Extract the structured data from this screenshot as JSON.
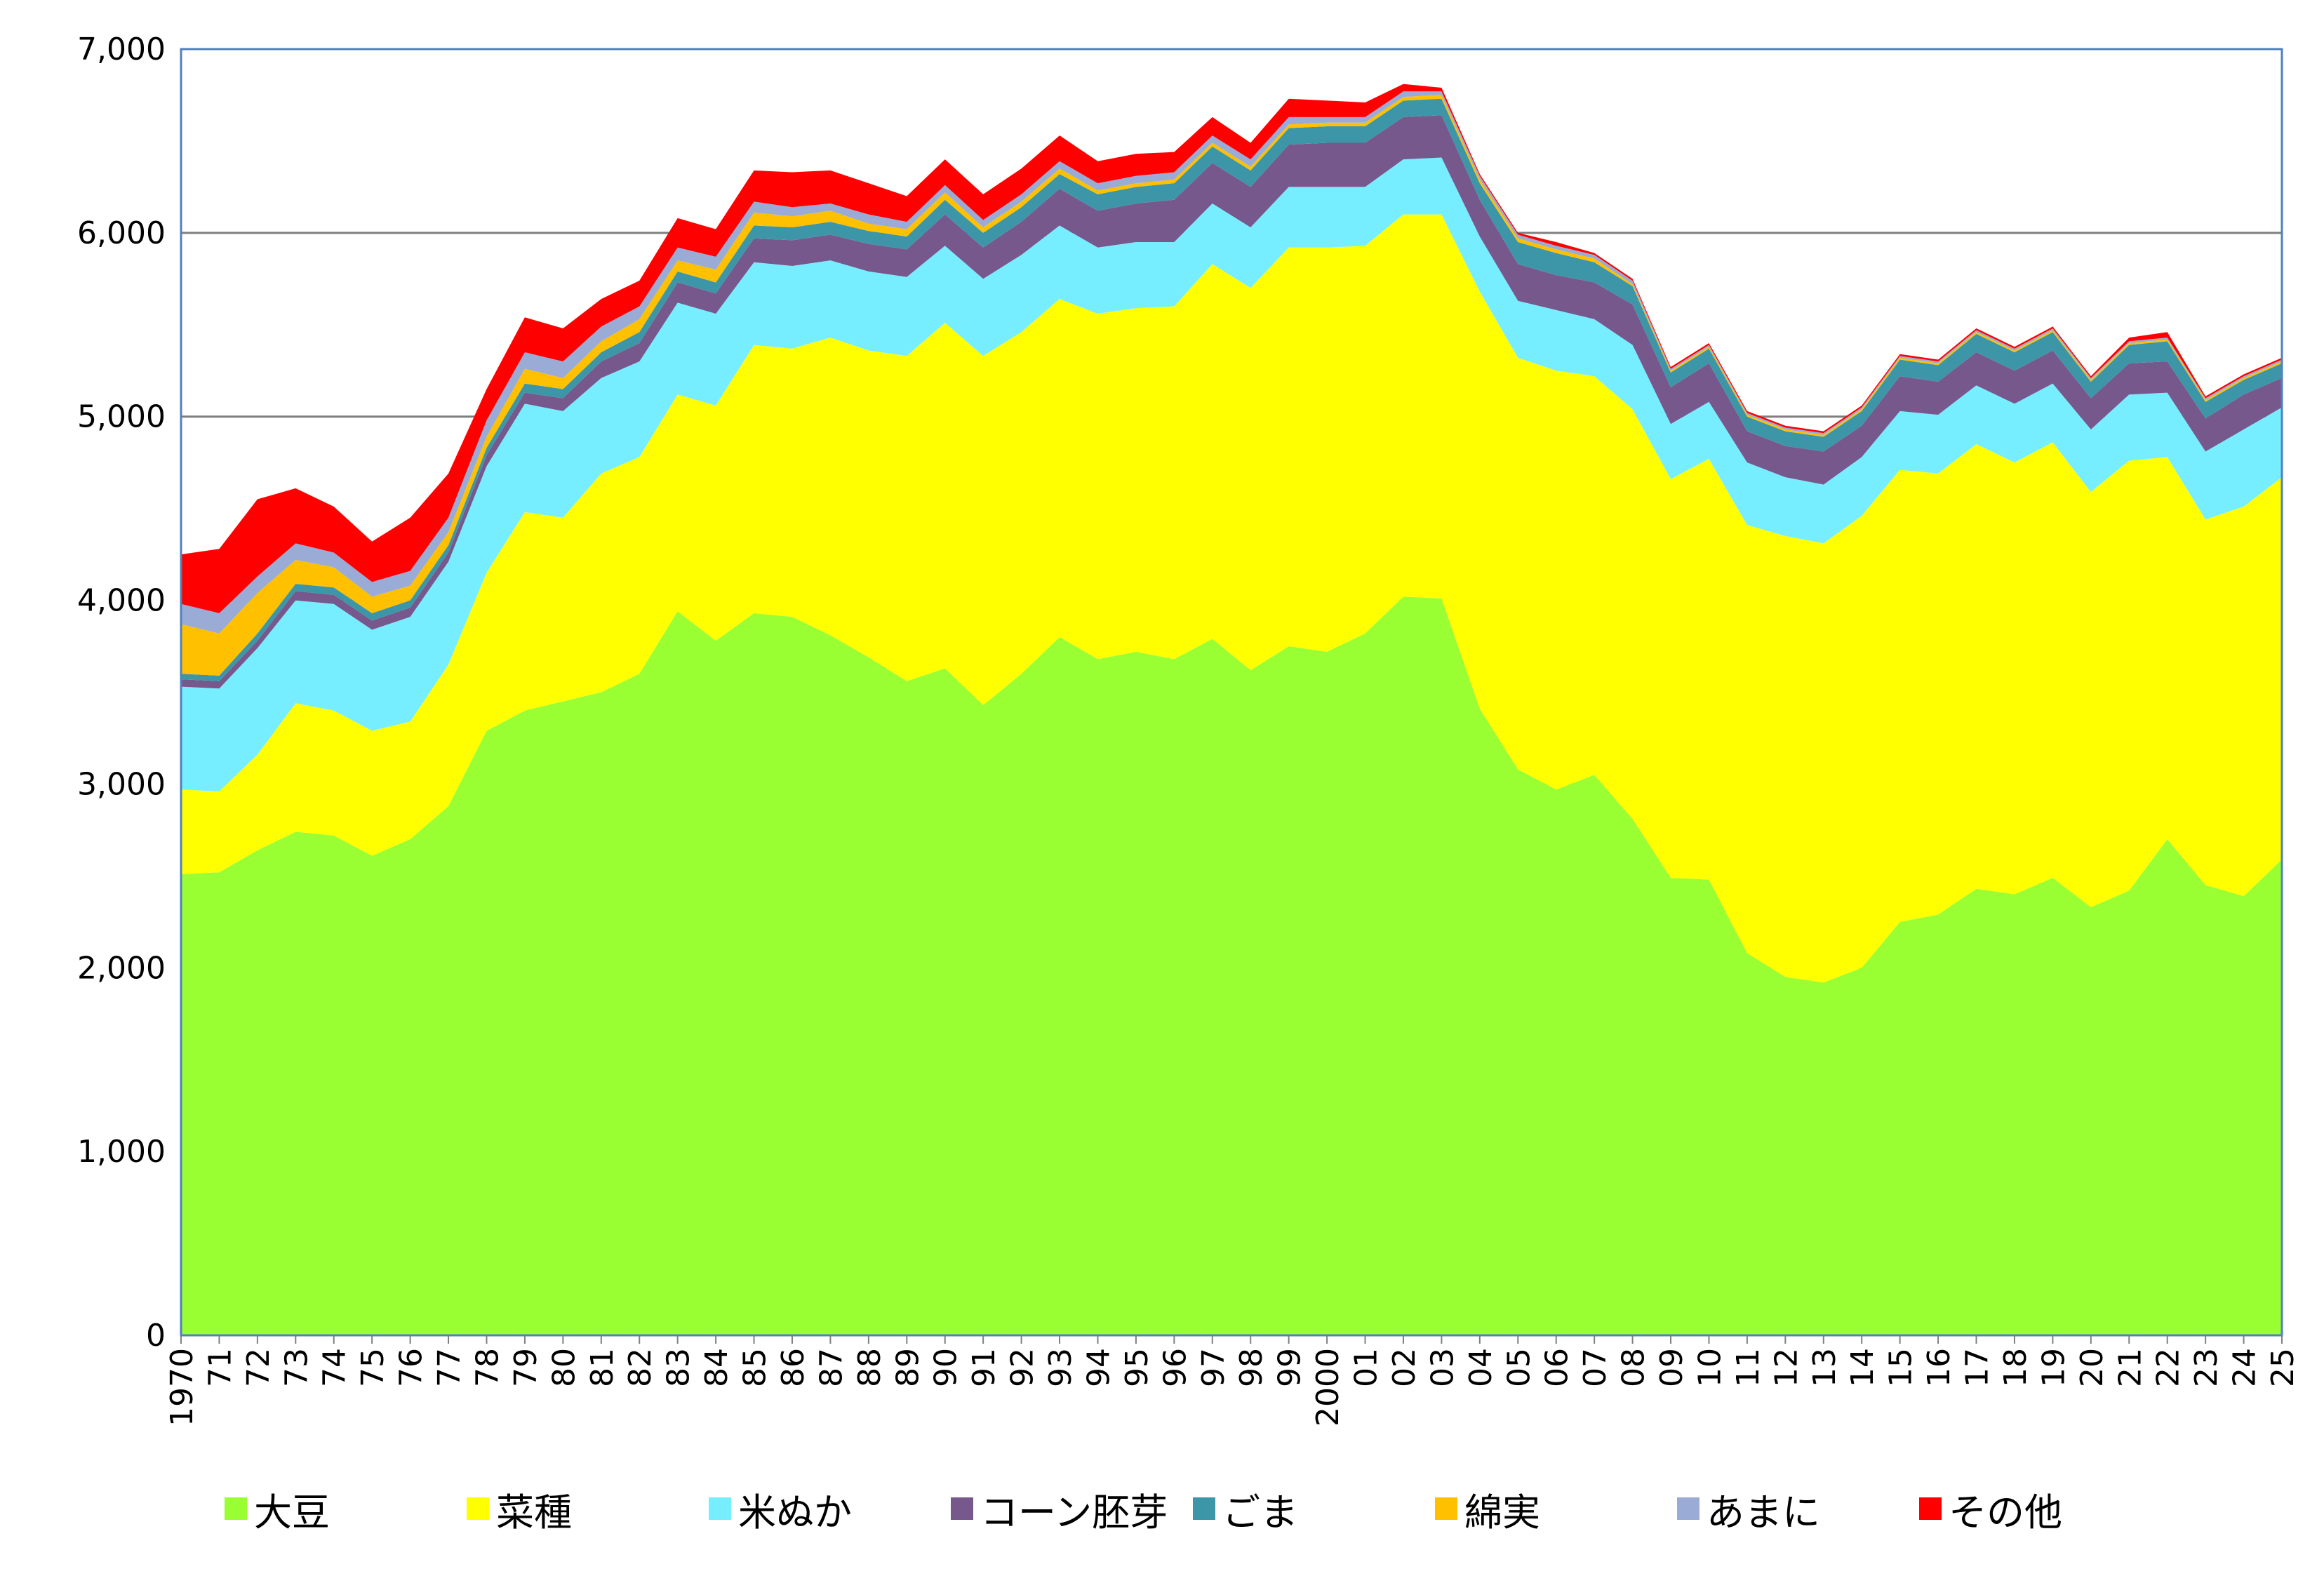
{
  "chart_data": {
    "type": "area",
    "stacked": true,
    "title": "",
    "xlabel": "",
    "ylabel": "",
    "ylim": [
      0,
      7000
    ],
    "yticks": [
      "0",
      "1,000",
      "2,000",
      "3,000",
      "4,000",
      "5,000",
      "6,000",
      "7,000"
    ],
    "grid": true,
    "legend_position": "bottom",
    "categories": [
      "1970",
      "71",
      "72",
      "73",
      "74",
      "75",
      "76",
      "77",
      "78",
      "79",
      "80",
      "81",
      "82",
      "83",
      "84",
      "85",
      "86",
      "87",
      "88",
      "89",
      "90",
      "91",
      "92",
      "93",
      "94",
      "95",
      "96",
      "97",
      "98",
      "99",
      "2000",
      "01",
      "02",
      "03",
      "04",
      "05",
      "06",
      "07",
      "08",
      "09",
      "10",
      "11",
      "12",
      "13",
      "14",
      "15",
      "16",
      "17",
      "18",
      "19",
      "20",
      "21",
      "22",
      "23",
      "24",
      "25"
    ],
    "series": [
      {
        "name": "大豆",
        "color": "#99ff33",
        "values": [
          2510,
          2520,
          2640,
          2740,
          2720,
          2610,
          2700,
          2880,
          3290,
          3400,
          3450,
          3500,
          3600,
          3940,
          3780,
          3930,
          3910,
          3810,
          3690,
          3560,
          3630,
          3430,
          3600,
          3800,
          3680,
          3720,
          3680,
          3790,
          3620,
          3750,
          3720,
          3820,
          4020,
          4010,
          3410,
          3080,
          2970,
          3050,
          2810,
          2490,
          2480,
          2080,
          1950,
          1920,
          2000,
          2250,
          2290,
          2430,
          2400,
          2490,
          2330,
          2420,
          2700,
          2450,
          2390,
          2590
        ]
      },
      {
        "name": "菜種",
        "color": "#ffff00",
        "values": [
          460,
          440,
          520,
          700,
          680,
          680,
          640,
          770,
          860,
          1080,
          1000,
          1190,
          1180,
          1180,
          1280,
          1460,
          1460,
          1620,
          1670,
          1770,
          1880,
          1900,
          1860,
          1840,
          1880,
          1870,
          1920,
          2040,
          2080,
          2170,
          2200,
          2110,
          2080,
          2090,
          2270,
          2240,
          2280,
          2170,
          2230,
          2170,
          2290,
          2330,
          2400,
          2390,
          2460,
          2460,
          2400,
          2420,
          2350,
          2370,
          2260,
          2340,
          2080,
          1990,
          2120,
          2080
        ]
      },
      {
        "name": "米ぬか",
        "color": "#77eeff",
        "values": [
          560,
          560,
          580,
          560,
          580,
          550,
          570,
          560,
          580,
          590,
          580,
          520,
          520,
          500,
          500,
          450,
          450,
          420,
          430,
          430,
          420,
          420,
          420,
          400,
          360,
          360,
          350,
          330,
          330,
          330,
          330,
          320,
          300,
          310,
          300,
          310,
          330,
          310,
          350,
          300,
          310,
          340,
          320,
          320,
          320,
          320,
          320,
          320,
          320,
          320,
          340,
          360,
          350,
          370,
          420,
          380
        ]
      },
      {
        "name": "コーン胚芽",
        "color": "#76588c",
        "values": [
          40,
          40,
          40,
          50,
          50,
          50,
          50,
          50,
          60,
          60,
          70,
          90,
          100,
          110,
          110,
          130,
          140,
          140,
          150,
          150,
          170,
          170,
          180,
          200,
          200,
          210,
          230,
          220,
          220,
          230,
          240,
          240,
          230,
          230,
          200,
          200,
          190,
          200,
          220,
          200,
          210,
          170,
          170,
          180,
          170,
          190,
          180,
          180,
          180,
          180,
          170,
          170,
          170,
          180,
          190,
          160
        ]
      },
      {
        "name": "ごま",
        "color": "#3d96a8",
        "values": [
          30,
          30,
          40,
          40,
          40,
          40,
          40,
          40,
          40,
          50,
          50,
          50,
          60,
          60,
          60,
          70,
          70,
          70,
          70,
          70,
          80,
          80,
          80,
          80,
          90,
          90,
          90,
          90,
          90,
          90,
          90,
          90,
          90,
          90,
          90,
          120,
          120,
          110,
          100,
          80,
          80,
          80,
          80,
          80,
          80,
          90,
          90,
          100,
          100,
          100,
          90,
          100,
          110,
          90,
          80,
          80
        ]
      },
      {
        "name": "綿実",
        "color": "#ffc000",
        "values": [
          270,
          230,
          220,
          130,
          110,
          90,
          80,
          70,
          60,
          80,
          60,
          60,
          70,
          60,
          70,
          70,
          60,
          60,
          40,
          40,
          40,
          30,
          30,
          30,
          20,
          20,
          20,
          20,
          20,
          20,
          20,
          20,
          20,
          20,
          20,
          20,
          20,
          20,
          10,
          10,
          10,
          10,
          10,
          10,
          10,
          10,
          10,
          10,
          10,
          10,
          10,
          10,
          10,
          10,
          10,
          10
        ]
      },
      {
        "name": "あまに",
        "color": "#9aabd6",
        "values": [
          110,
          110,
          90,
          90,
          80,
          80,
          80,
          80,
          90,
          90,
          90,
          80,
          70,
          70,
          70,
          60,
          50,
          40,
          50,
          40,
          40,
          40,
          40,
          40,
          40,
          40,
          40,
          40,
          40,
          40,
          30,
          30,
          30,
          20,
          20,
          20,
          20,
          20,
          20,
          10,
          10,
          10,
          10,
          10,
          10,
          10,
          10,
          10,
          10,
          10,
          10,
          10,
          10,
          10,
          10,
          10
        ]
      },
      {
        "name": "その他",
        "color": "#ff0000",
        "values": [
          270,
          350,
          420,
          300,
          250,
          220,
          290,
          240,
          170,
          190,
          180,
          150,
          140,
          160,
          150,
          170,
          190,
          180,
          170,
          140,
          140,
          140,
          140,
          140,
          120,
          120,
          110,
          100,
          90,
          100,
          90,
          80,
          40,
          20,
          10,
          10,
          20,
          10,
          10,
          10,
          10,
          10,
          10,
          10,
          10,
          10,
          10,
          10,
          10,
          10,
          10,
          20,
          30,
          10,
          10,
          10
        ]
      }
    ]
  }
}
